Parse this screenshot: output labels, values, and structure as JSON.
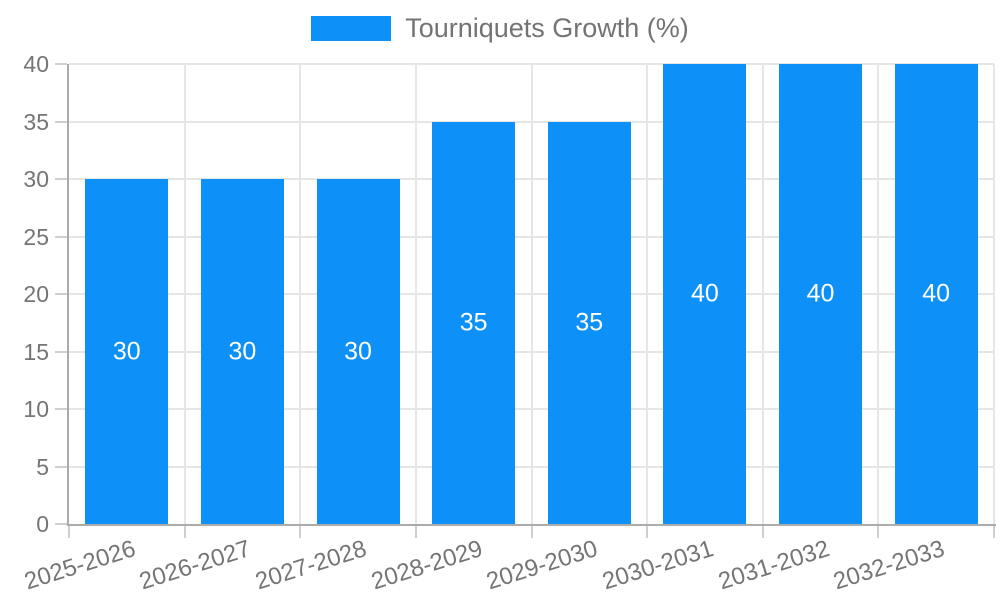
{
  "legend": {
    "label": "Tourniquets Growth (%)",
    "position": "top"
  },
  "chart_data": {
    "type": "bar",
    "title": "",
    "xlabel": "",
    "ylabel": "",
    "categories": [
      "2025-2026",
      "2026-2027",
      "2027-2028",
      "2028-2029",
      "2029-2030",
      "2030-2031",
      "2031-2032",
      "2032-2033"
    ],
    "series": [
      {
        "name": "Tourniquets Growth (%)",
        "values": [
          30,
          30,
          30,
          35,
          35,
          40,
          40,
          40
        ]
      }
    ],
    "data_labels": [
      "30",
      "30",
      "30",
      "35",
      "35",
      "40",
      "40",
      "40"
    ],
    "ylim": [
      0,
      40
    ],
    "yticks": [
      0,
      5,
      10,
      15,
      20,
      25,
      30,
      35,
      40
    ],
    "grid": true,
    "legend_position": "top"
  },
  "colors": {
    "bar": "#0d90f8",
    "data_label": "#ffffff",
    "grid": "#e6e6e6",
    "axis": "#ababab",
    "tick_mark": "#cfcfcf",
    "tick_label": "#757575",
    "legend_label": "#737373",
    "background": "#ffffff"
  }
}
